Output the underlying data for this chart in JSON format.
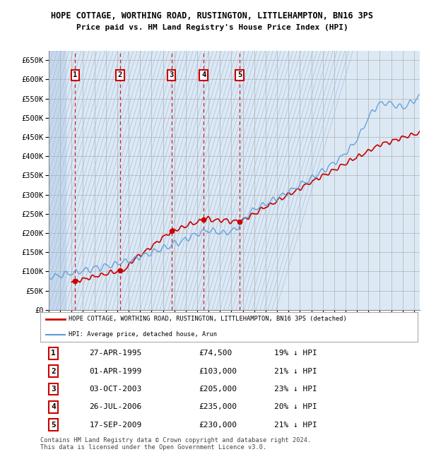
{
  "title": "HOPE COTTAGE, WORTHING ROAD, RUSTINGTON, LITTLEHAMPTON, BN16 3PS",
  "subtitle": "Price paid vs. HM Land Registry's House Price Index (HPI)",
  "background_color": "#dce9f5",
  "hpi_color": "#5b9bd5",
  "sale_color": "#cc0000",
  "sale_dates": [
    1995.32,
    1999.25,
    2003.75,
    2006.57,
    2009.71
  ],
  "sale_prices": [
    74500,
    103000,
    205000,
    235000,
    230000
  ],
  "sale_labels": [
    "1",
    "2",
    "3",
    "4",
    "5"
  ],
  "sale_date_strings": [
    "27-APR-1995",
    "01-APR-1999",
    "03-OCT-2003",
    "26-JUL-2006",
    "17-SEP-2009"
  ],
  "sale_price_strings": [
    "£74,500",
    "£103,000",
    "£205,000",
    "£235,000",
    "£230,000"
  ],
  "sale_pct_strings": [
    "19% ↓ HPI",
    "21% ↓ HPI",
    "23% ↓ HPI",
    "20% ↓ HPI",
    "21% ↓ HPI"
  ],
  "xmin": 1993.0,
  "xmax": 2025.5,
  "ymin": 0,
  "ymax": 675000,
  "yticks": [
    0,
    50000,
    100000,
    150000,
    200000,
    250000,
    300000,
    350000,
    400000,
    450000,
    500000,
    550000,
    600000,
    650000
  ],
  "ytick_labels": [
    "£0",
    "£50K",
    "£100K",
    "£150K",
    "£200K",
    "£250K",
    "£300K",
    "£350K",
    "£400K",
    "£450K",
    "£500K",
    "£550K",
    "£600K",
    "£650K"
  ],
  "legend_property_label": "HOPE COTTAGE, WORTHING ROAD, RUSTINGTON, LITTLEHAMPTON, BN16 3PS (detached)",
  "legend_hpi_label": "HPI: Average price, detached house, Arun",
  "footer": "Contains HM Land Registry data © Crown copyright and database right 2024.\nThis data is licensed under the Open Government Licence v3.0."
}
